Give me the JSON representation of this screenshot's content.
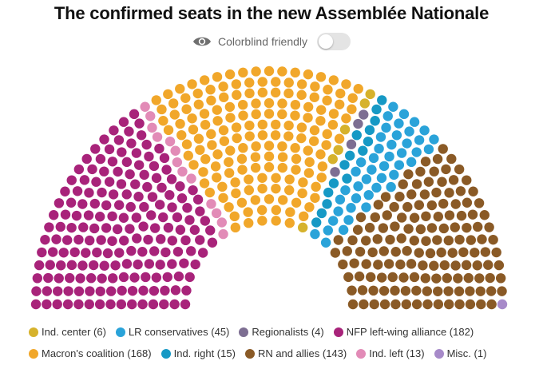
{
  "title": "The confirmed seats in the new Assemblée Nationale",
  "toggle": {
    "label": "Colorblind friendly",
    "icon": "eye-icon",
    "enabled": false
  },
  "chart_data": {
    "type": "hemicycle",
    "title": "The confirmed seats in the new Assemblée Nationale",
    "total_seats": 577,
    "series": [
      {
        "name": "NFP left-wing alliance",
        "seats": 182,
        "color": "#a8237a"
      },
      {
        "name": "Ind. left",
        "seats": 13,
        "color": "#e28bb7"
      },
      {
        "name": "Macron's coalition",
        "seats": 168,
        "color": "#f1a72a"
      },
      {
        "name": "Ind. center",
        "seats": 6,
        "color": "#d6b22c"
      },
      {
        "name": "Regionalists",
        "seats": 4,
        "color": "#7d6e92"
      },
      {
        "name": "Ind. right",
        "seats": 15,
        "color": "#1699c5"
      },
      {
        "name": "LR conservatives",
        "seats": 45,
        "color": "#2aa3d9"
      },
      {
        "name": "RN and allies",
        "seats": 143,
        "color": "#8a5a26"
      },
      {
        "name": "Misc.",
        "seats": 1,
        "color": "#a78ac9"
      }
    ],
    "legend": [
      {
        "label": "Ind. center (6)",
        "color": "#d6b22c"
      },
      {
        "label": "LR conservatives (45)",
        "color": "#2aa3d9"
      },
      {
        "label": "Regionalists (4)",
        "color": "#7d6e92"
      },
      {
        "label": "NFP left-wing alliance (182)",
        "color": "#a8237a"
      },
      {
        "label": "Macron's coalition (168)",
        "color": "#f1a72a"
      },
      {
        "label": "Ind. right (15)",
        "color": "#1699c5"
      },
      {
        "label": "RN and allies (143)",
        "color": "#8a5a26"
      },
      {
        "label": "Ind. left (13)",
        "color": "#e28bb7"
      },
      {
        "label": "Misc. (1)",
        "color": "#a78ac9"
      }
    ]
  }
}
